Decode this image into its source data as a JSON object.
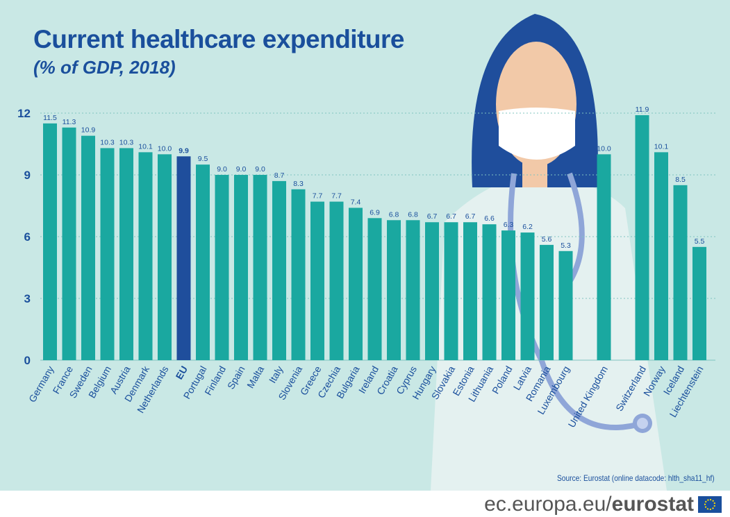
{
  "chart_data": {
    "type": "bar",
    "title": "Current healthcare expenditure",
    "subtitle": "(% of GDP, 2018)",
    "categories": [
      "Germany",
      "France",
      "Sweden",
      "Belgium",
      "Austria",
      "Denmark",
      "Netherlands",
      "EU",
      "Portugal",
      "Finland",
      "Spain",
      "Malta",
      "Italy",
      "Slovenia",
      "Greece",
      "Czechia",
      "Bulgaria",
      "Ireland",
      "Croatia",
      "Cyprus",
      "Hungary",
      "Slovakia",
      "Estonia",
      "Lithuania",
      "Poland",
      "Latvia",
      "Romania",
      "Luxembourg",
      "United Kingdom",
      "Switzerland",
      "Norway",
      "Iceland",
      "Liechtenstein"
    ],
    "values": [
      11.5,
      11.3,
      10.9,
      10.3,
      10.3,
      10.1,
      10.0,
      9.9,
      9.5,
      9.0,
      9.0,
      9.0,
      8.7,
      8.3,
      7.7,
      7.7,
      7.4,
      6.9,
      6.8,
      6.8,
      6.7,
      6.7,
      6.7,
      6.6,
      6.3,
      6.2,
      5.6,
      5.3,
      10.0,
      11.9,
      10.1,
      8.5,
      5.5
    ],
    "highlight": "EU",
    "yticks": [
      0,
      3,
      6,
      9,
      12
    ],
    "ylim": [
      0,
      12
    ],
    "grid": true,
    "colors": {
      "bar": "#1aa8a0",
      "highlight": "#1f4e9c",
      "text": "#1a4f9c",
      "background": "#c9e8e5"
    }
  },
  "source": "Source:  Eurostat (online datacode: hlth_sha11_hf)",
  "footer": {
    "domain": "ec.europa.eu/",
    "brand": "eurostat"
  }
}
